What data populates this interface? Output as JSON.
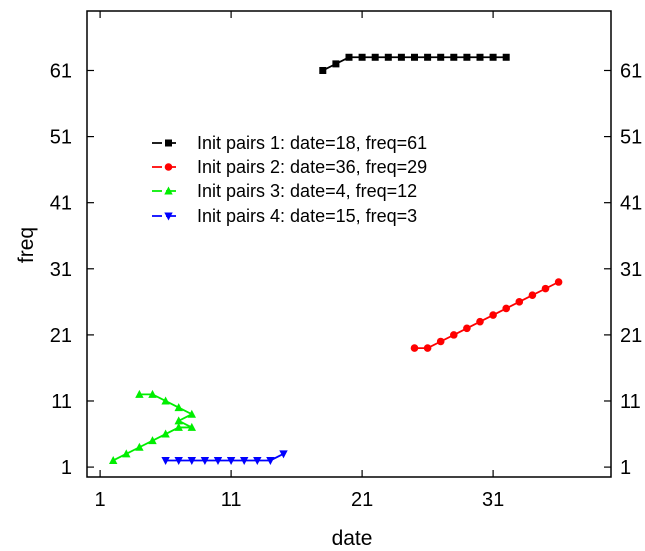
{
  "chart_data": {
    "type": "line",
    "title": "",
    "xlabel": "date",
    "ylabel": "freq",
    "xlim": [
      0,
      40
    ],
    "ylim": [
      -0.5,
      70
    ],
    "xticks": [
      1,
      11,
      21,
      31
    ],
    "yticks": [
      1,
      11,
      21,
      31,
      41,
      51,
      61
    ],
    "grid": false,
    "legend_position": "center-left",
    "series": [
      {
        "name": "Init pairs 1: date=18, freq=61",
        "color": "#000000",
        "marker": "square",
        "x": [
          18,
          19,
          20,
          21,
          22,
          23,
          24,
          25,
          26,
          27,
          28,
          29,
          30,
          31,
          32
        ],
        "y": [
          61,
          62,
          63,
          63,
          63,
          63,
          63,
          63,
          63,
          63,
          63,
          63,
          63,
          63,
          63
        ]
      },
      {
        "name": "Init pairs 2: date=36, freq=29",
        "color": "#ff0000",
        "marker": "circle",
        "x": [
          25,
          26,
          27,
          28,
          29,
          30,
          31,
          32,
          33,
          34,
          35,
          36
        ],
        "y": [
          19,
          19,
          20,
          21,
          22,
          23,
          24,
          25,
          26,
          27,
          28,
          29
        ]
      },
      {
        "name": "Init pairs 3: date=4,   freq=12",
        "color": "#00ee00",
        "marker": "triangle-up",
        "x": [
          2,
          3,
          4,
          5,
          6,
          7,
          8,
          7,
          8,
          7,
          6,
          5,
          4
        ],
        "y": [
          2,
          3,
          4,
          5,
          6,
          7,
          7,
          8,
          9,
          10,
          11,
          12,
          12
        ],
        "x_sorted_display": [
          2,
          3,
          4,
          5,
          6,
          7,
          8,
          7,
          8,
          7,
          6,
          5,
          4
        ]
      },
      {
        "name": "Init pairs 4: date=15, freq=3",
        "color": "#0000ff",
        "marker": "triangle-down",
        "x": [
          6,
          7,
          8,
          9,
          10,
          11,
          12,
          13,
          14,
          15
        ],
        "y": [
          2,
          2,
          2,
          2,
          2,
          2,
          2,
          2,
          2,
          3
        ]
      }
    ]
  }
}
